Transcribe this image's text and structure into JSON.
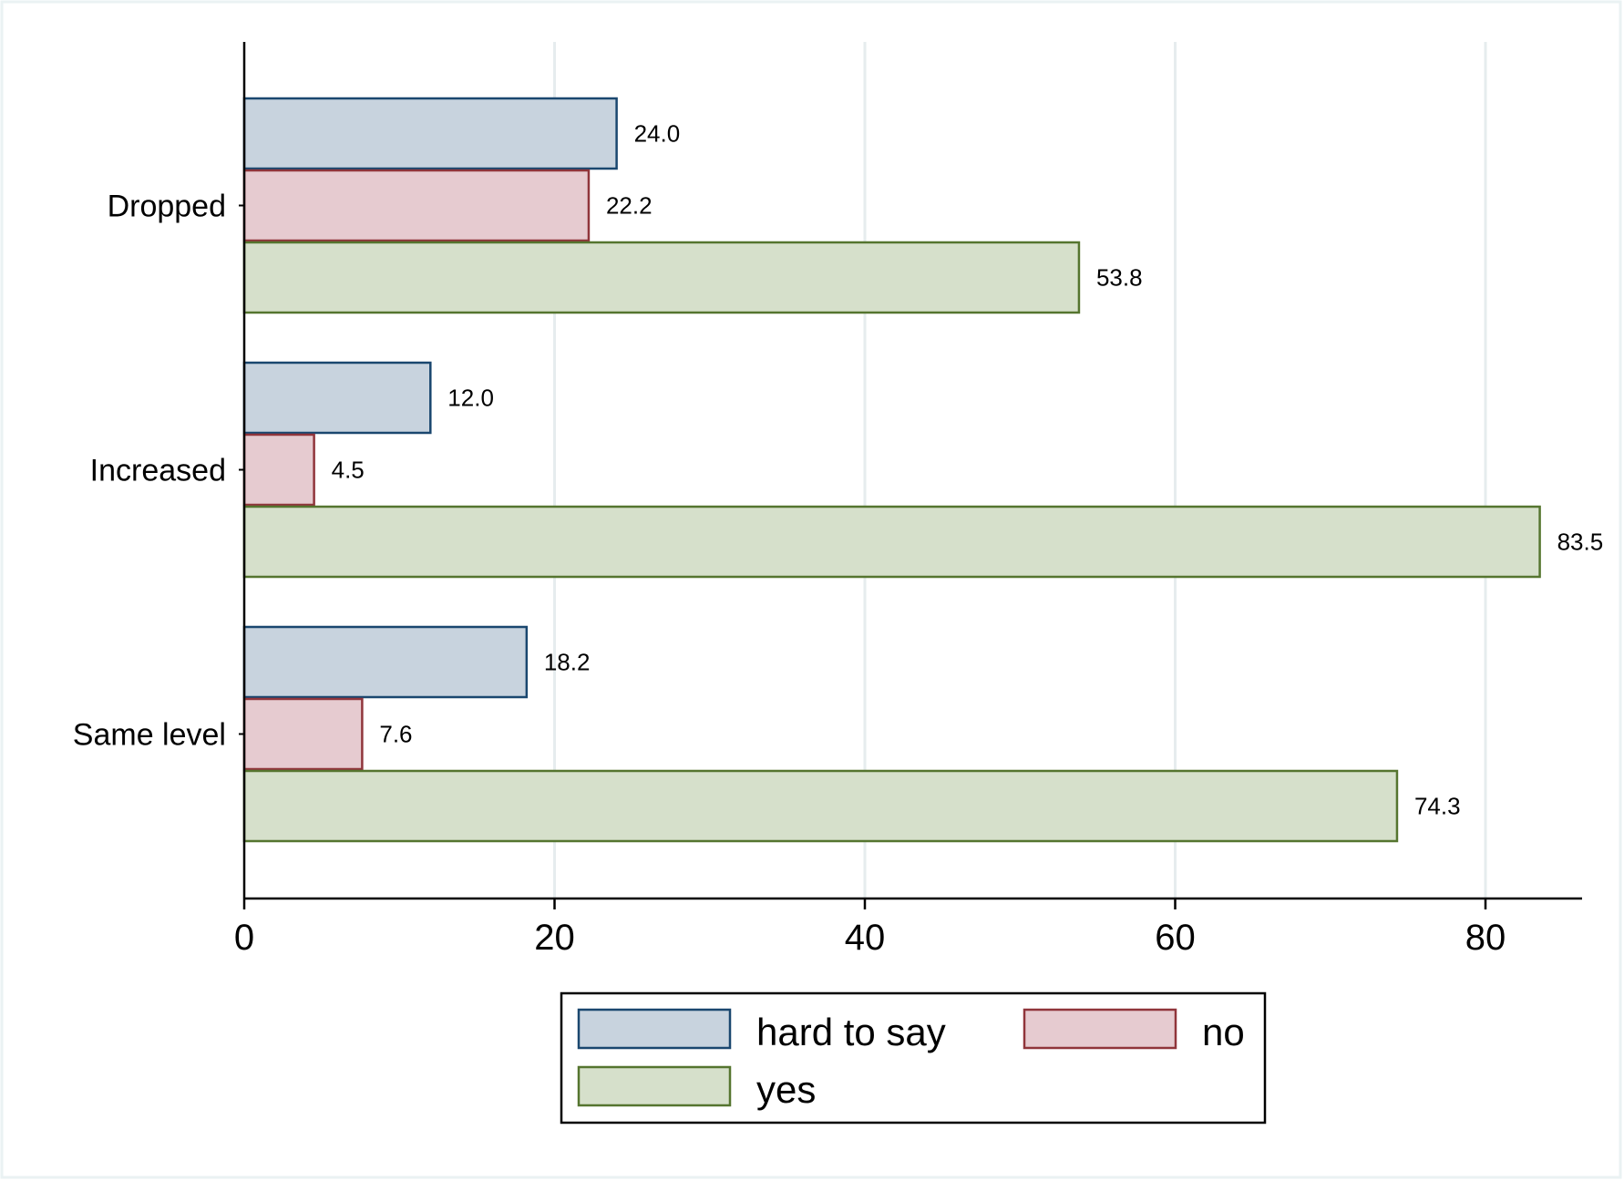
{
  "chart_data": {
    "type": "bar",
    "orientation": "horizontal",
    "categories": [
      "Dropped",
      "Increased",
      "Same level"
    ],
    "series": [
      {
        "name": "hard to say",
        "values": [
          24.0,
          12.0,
          18.2
        ],
        "fill": "#c8d3de",
        "stroke": "#1a476f"
      },
      {
        "name": "no",
        "values": [
          22.2,
          4.5,
          7.6
        ],
        "fill": "#e6cbd0",
        "stroke": "#90353b"
      },
      {
        "name": "yes",
        "values": [
          53.8,
          83.5,
          74.3
        ],
        "fill": "#d6e0cb",
        "stroke": "#55752f"
      }
    ],
    "data_labels": [
      [
        "24.0",
        "12.0",
        "18.2"
      ],
      [
        "22.2",
        "4.5",
        "7.6"
      ],
      [
        "53.8",
        "83.5",
        "74.3"
      ]
    ],
    "xlim": [
      0,
      86
    ],
    "xticks": [
      0,
      20,
      40,
      60,
      80
    ],
    "xtick_labels": [
      "0",
      "20",
      "40",
      "60",
      "80"
    ],
    "grid": true,
    "grid_color": "#e6ecee",
    "legend": {
      "placement": "bottom",
      "columns": 2,
      "entries": [
        "hard to say",
        "no",
        "yes"
      ]
    },
    "title": "",
    "xlabel": "",
    "ylabel": ""
  }
}
